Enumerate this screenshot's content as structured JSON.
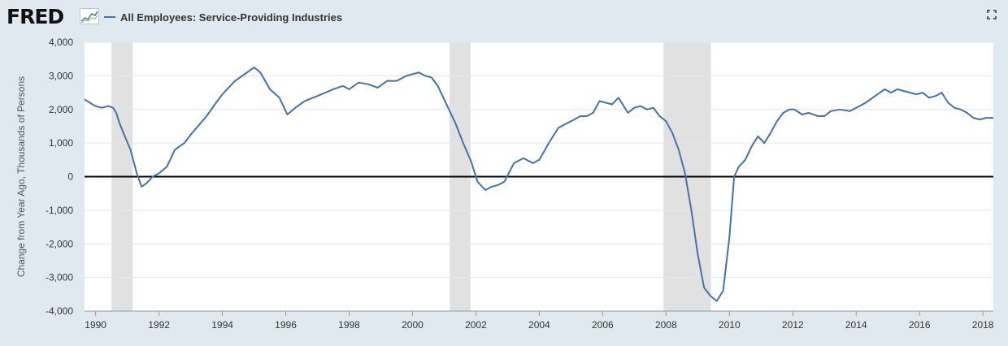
{
  "header": {
    "logo_text": "FRED",
    "series_title": "All Employees: Service-Providing Industries"
  },
  "icons": {
    "logo_chart": "sparkline-icon",
    "expand": "fullscreen-icon"
  },
  "colors": {
    "series": "#4572a7",
    "recession": "#e1e1e1",
    "background": "#e1e9f0",
    "plot": "#ffffff",
    "zero_line": "#000000"
  },
  "chart_data": {
    "type": "line",
    "ylabel": "Change from Year Ago, Thousands of Persons",
    "ylim": [
      -4000,
      4000
    ],
    "yticks": [
      -4000,
      -3000,
      -2000,
      -1000,
      0,
      1000,
      2000,
      3000,
      4000
    ],
    "ytick_labels": [
      "-4,000",
      "-3,000",
      "-2,000",
      "-1,000",
      "0",
      "1,000",
      "2,000",
      "3,000",
      "4,000"
    ],
    "xlim": [
      1989.65,
      2018.33
    ],
    "xticks": [
      1990,
      1992,
      1994,
      1996,
      1998,
      2000,
      2002,
      2004,
      2006,
      2008,
      2010,
      2012,
      2014,
      2016,
      2018
    ],
    "xtick_labels": [
      "1990",
      "1992",
      "1994",
      "1996",
      "1998",
      "2000",
      "2002",
      "2004",
      "2006",
      "2008",
      "2010",
      "2012",
      "2014",
      "2016",
      "2018"
    ],
    "recessions": [
      [
        1990.5,
        1991.17
      ],
      [
        2001.17,
        2001.83
      ],
      [
        2007.92,
        2009.42
      ]
    ],
    "series": [
      {
        "x": [
          1989.65,
          1989.9,
          1990.0,
          1990.2,
          1990.4,
          1990.55,
          1990.65,
          1990.75,
          1990.9,
          1991.1,
          1991.3,
          1991.45,
          1991.6,
          1991.8,
          1992.0,
          1992.25,
          1992.5,
          1992.8,
          1993.0,
          1993.5,
          1993.8,
          1994.0,
          1994.4,
          1994.7,
          1995.0,
          1995.2,
          1995.5,
          1995.8,
          1996.05,
          1996.3,
          1996.6,
          1997.0,
          1997.5,
          1997.8,
          1998.0,
          1998.3,
          1998.6,
          1998.9,
          1999.2,
          1999.5,
          1999.8,
          2000.0,
          2000.2,
          2000.4,
          2000.6,
          2000.8,
          2001.0,
          2001.2,
          2001.35,
          2001.6,
          2001.85,
          2002.05,
          2002.3,
          2002.5,
          2002.7,
          2002.9,
          2003.2,
          2003.5,
          2003.8,
          2004.0,
          2004.3,
          2004.6,
          2004.9,
          2005.1,
          2005.3,
          2005.5,
          2005.7,
          2005.9,
          2006.1,
          2006.3,
          2006.5,
          2006.8,
          2007.0,
          2007.2,
          2007.4,
          2007.6,
          2007.8,
          2008.0,
          2008.2,
          2008.4,
          2008.6,
          2008.8,
          2009.0,
          2009.2,
          2009.4,
          2009.6,
          2009.8,
          2010.0,
          2010.15,
          2010.3,
          2010.5,
          2010.7,
          2010.9,
          2011.1,
          2011.3,
          2011.5,
          2011.7,
          2011.9,
          2012.05,
          2012.3,
          2012.5,
          2012.8,
          2013.0,
          2013.2,
          2013.5,
          2013.8,
          2014.0,
          2014.3,
          2014.6,
          2014.9,
          2015.1,
          2015.3,
          2015.5,
          2015.7,
          2015.9,
          2016.1,
          2016.3,
          2016.5,
          2016.7,
          2016.9,
          2017.1,
          2017.3,
          2017.5,
          2017.7,
          2017.9,
          2018.1,
          2018.33
        ],
        "values": [
          2300,
          2150,
          2100,
          2050,
          2100,
          2050,
          1900,
          1600,
          1250,
          800,
          100,
          -300,
          -200,
          0,
          100,
          300,
          800,
          1000,
          1250,
          1800,
          2200,
          2450,
          2850,
          3050,
          3250,
          3100,
          2600,
          2350,
          1850,
          2050,
          2250,
          2400,
          2600,
          2700,
          2600,
          2800,
          2750,
          2650,
          2850,
          2850,
          3000,
          3050,
          3100,
          3000,
          2950,
          2700,
          2300,
          1900,
          1600,
          1000,
          450,
          -150,
          -400,
          -300,
          -250,
          -150,
          400,
          550,
          400,
          500,
          1000,
          1450,
          1600,
          1700,
          1800,
          1800,
          1900,
          2250,
          2200,
          2150,
          2350,
          1900,
          2050,
          2100,
          2000,
          2050,
          1800,
          1650,
          1300,
          800,
          100,
          -1000,
          -2300,
          -3300,
          -3550,
          -3700,
          -3400,
          -1800,
          0,
          300,
          500,
          900,
          1200,
          1000,
          1300,
          1650,
          1900,
          2000,
          2000,
          1850,
          1900,
          1800,
          1800,
          1950,
          2000,
          1950,
          2050,
          2200,
          2400,
          2600,
          2500,
          2600,
          2550,
          2500,
          2450,
          2500,
          2350,
          2400,
          2500,
          2200,
          2050,
          2000,
          1900,
          1750,
          1700,
          1750,
          1750
        ]
      }
    ]
  }
}
